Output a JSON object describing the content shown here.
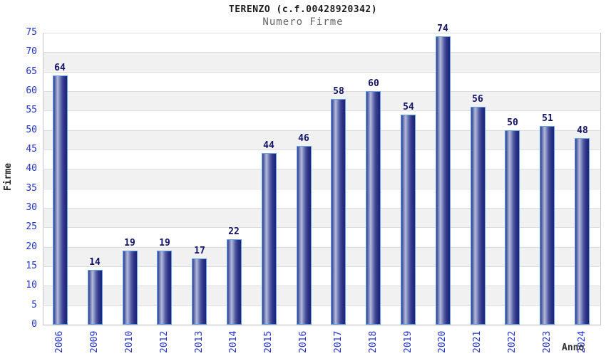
{
  "header": {
    "title": "TERENZO (c.f.00428920342)",
    "subtitle": "Numero Firme"
  },
  "chart_data": {
    "type": "bar",
    "title": "TERENZO (c.f.00428920342)",
    "subtitle": "Numero Firme",
    "xlabel": "Anno",
    "ylabel": "Firme",
    "categories": [
      "2006",
      "2009",
      "2010",
      "2012",
      "2013",
      "2014",
      "2015",
      "2016",
      "2017",
      "2018",
      "2019",
      "2020",
      "2021",
      "2022",
      "2023",
      "2024"
    ],
    "values": [
      64,
      14,
      19,
      19,
      17,
      22,
      44,
      46,
      58,
      60,
      54,
      74,
      56,
      50,
      51,
      48
    ],
    "ylim": [
      0,
      75
    ],
    "ytick_step": 5,
    "yticks": [
      0,
      5,
      10,
      15,
      20,
      25,
      30,
      35,
      40,
      45,
      50,
      55,
      60,
      65,
      70,
      75
    ],
    "grid": "horizontal",
    "legend_position": "none",
    "colors": {
      "tick_label": "#2233cc",
      "value_label": "#131368",
      "title": "#1a1a1a",
      "subtitle": "#666666",
      "bar_border": "#63a4e8",
      "bar_dark": "#1d2278",
      "bar_light": "#b3bad9",
      "band_gray": "#f1f1f1",
      "gridline": "#dcdcdc"
    }
  }
}
